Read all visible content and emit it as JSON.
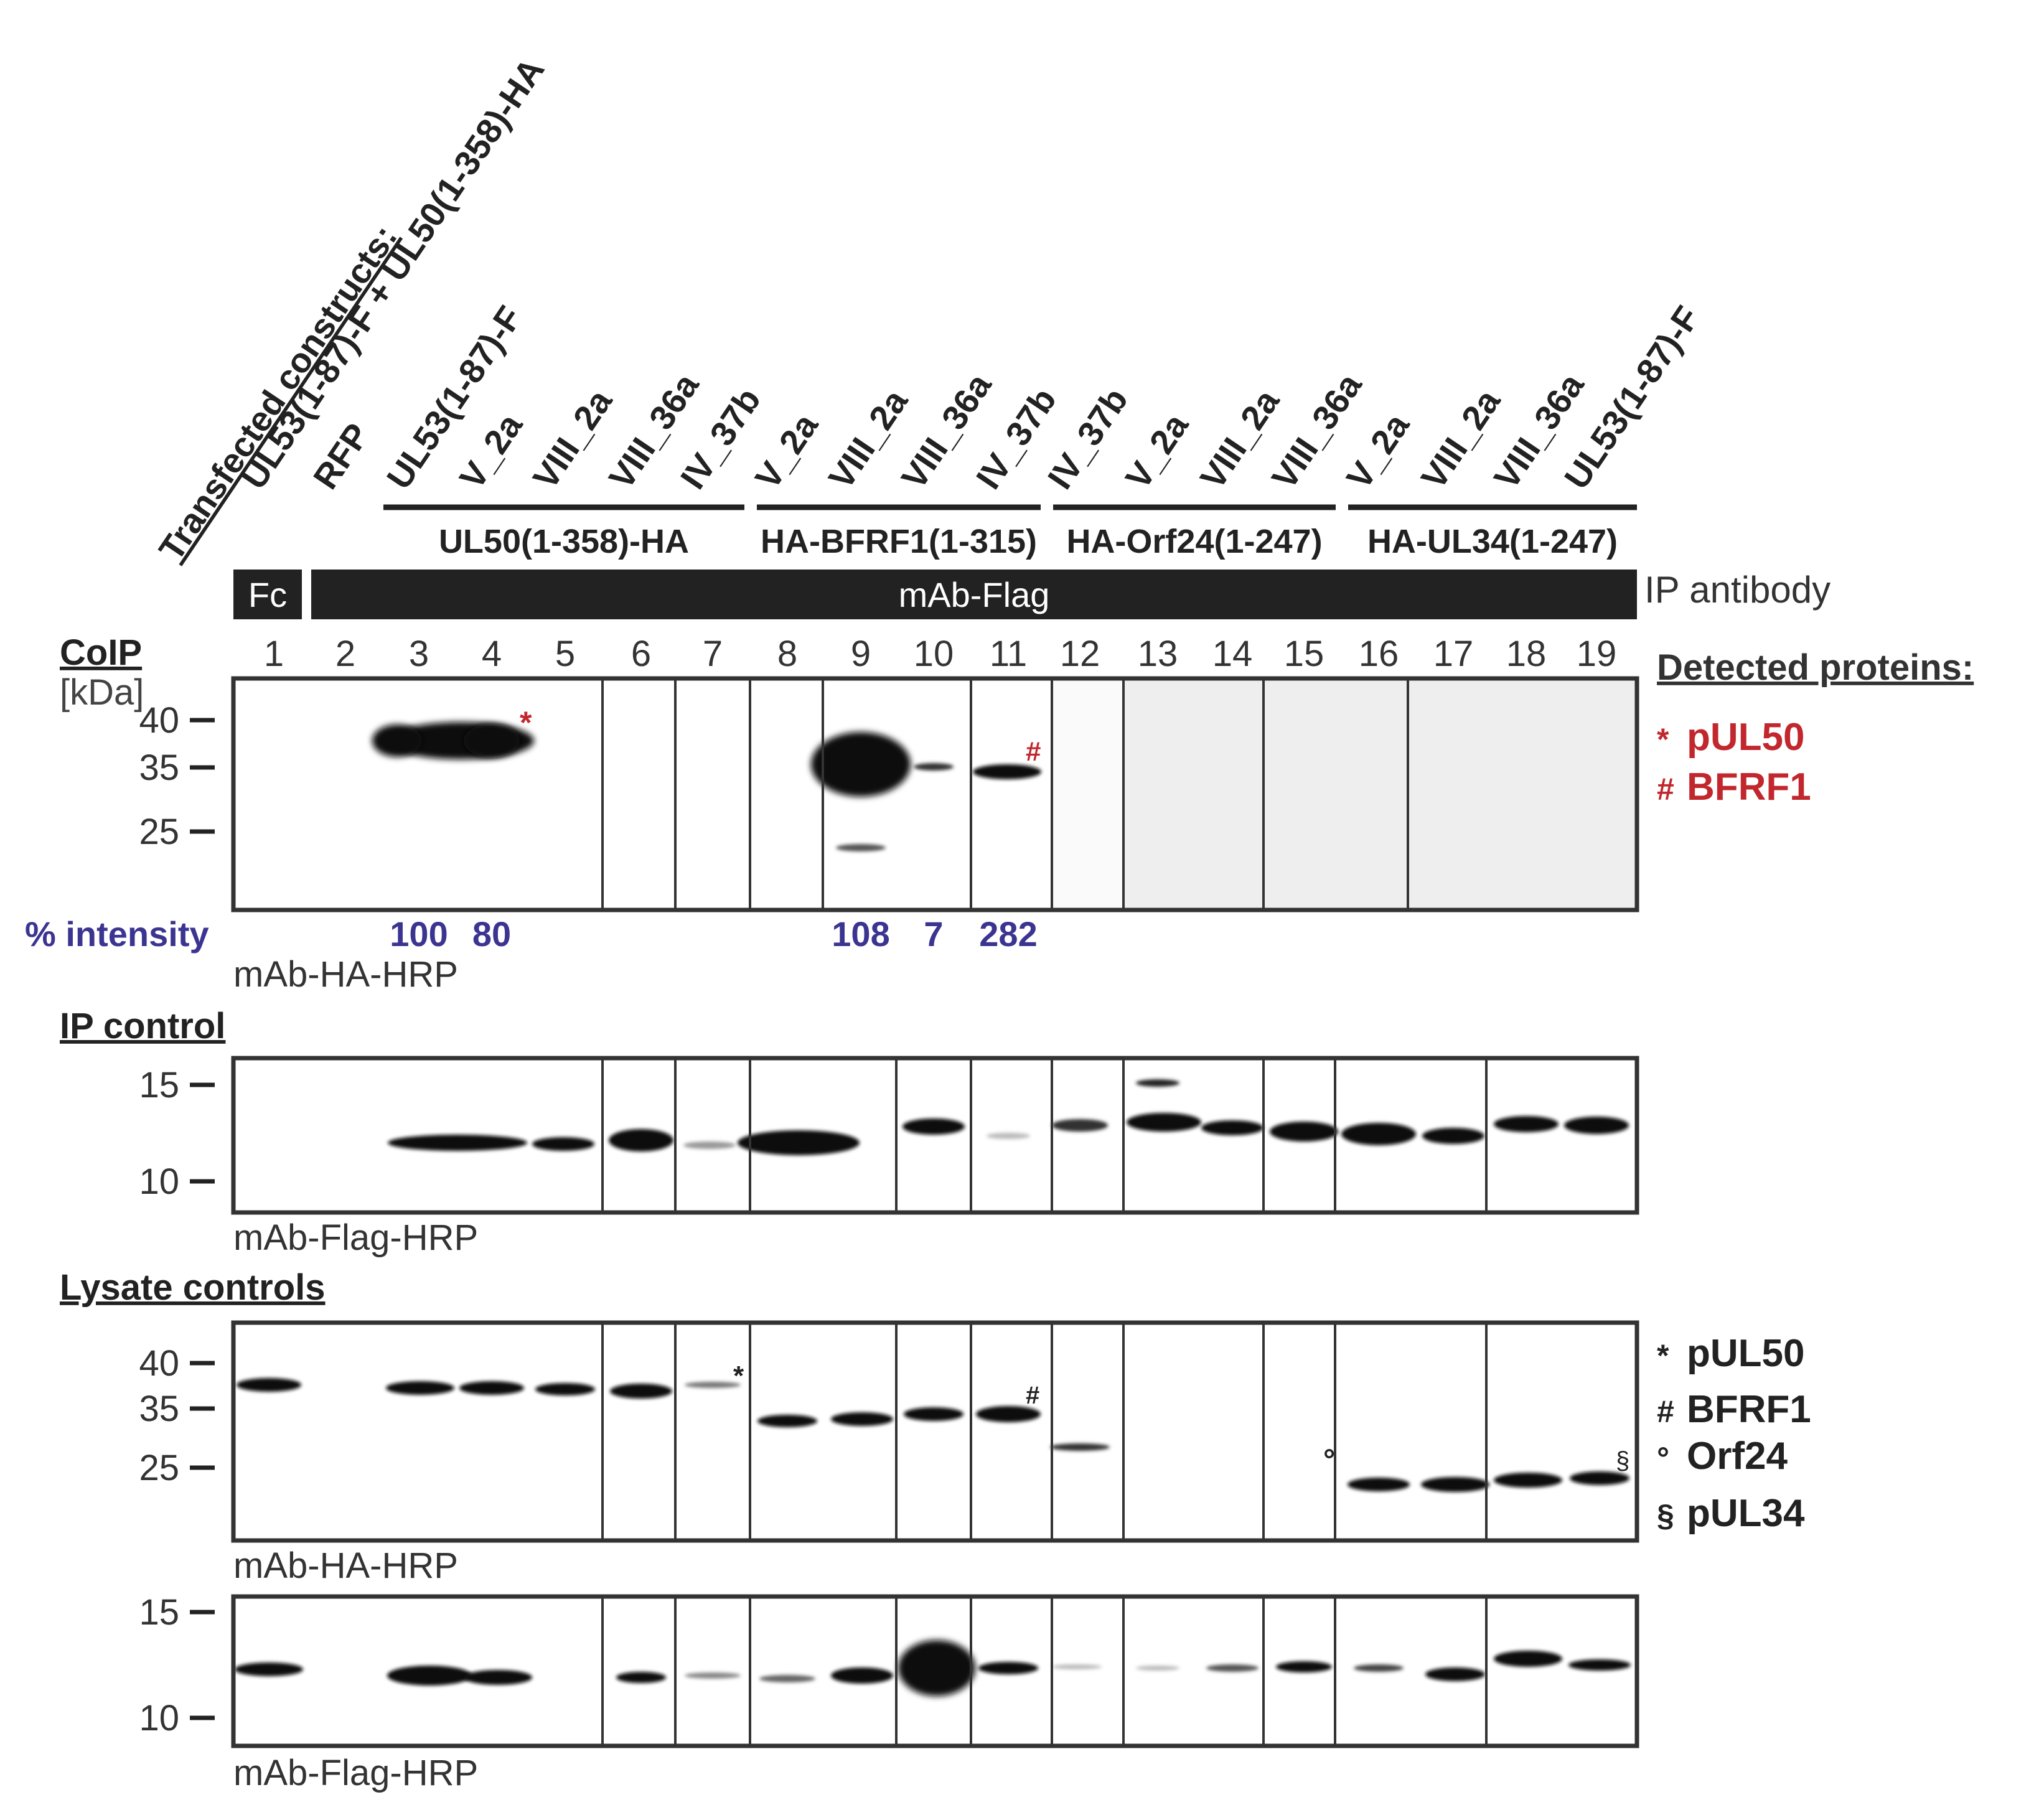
{
  "header": {
    "transfected_label": "Transfected constructs:",
    "lane_labels": [
      "UL53(1-87)-F + UL50(1-358)-HA",
      "RFP",
      "UL53(1-87)-F",
      "V_2a",
      "VIII_2a",
      "VIII_36a",
      "IV_37b",
      "V_2a",
      "VIII_2a",
      "VIII_36a",
      "IV_37b",
      "IV_37b",
      "V_2a",
      "VIII_2a",
      "VIII_36a",
      "V_2a",
      "VIII_2a",
      "VIII_36a",
      "UL53(1-87)-F"
    ],
    "groups": [
      "UL50(1-358)-HA",
      "HA-BFRF1(1-315)",
      "HA-Orf24(1-247)",
      "HA-UL34(1-247)"
    ],
    "ip_fc": "Fc",
    "ip_flag": "mAb-Flag",
    "ip_label": "IP antibody"
  },
  "lane_numbers": [
    "1",
    "2",
    "3",
    "4",
    "5",
    "6",
    "7",
    "8",
    "9",
    "10",
    "11",
    "12",
    "13",
    "14",
    "15",
    "16",
    "17",
    "18",
    "19"
  ],
  "coip": {
    "title": "CoIP",
    "unit": "[kDa]",
    "markers": [
      "40",
      "35",
      "25"
    ],
    "intensity_label": "% intensity",
    "intensities": [
      "100",
      "80",
      "108",
      "7",
      "282"
    ],
    "antibody": "mAb-HA-HRP",
    "symbol_star": "*",
    "symbol_hash": "#"
  },
  "ip_control": {
    "title": "IP control",
    "markers": [
      "15",
      "10"
    ],
    "antibody": "mAb-Flag-HRP"
  },
  "lysate": {
    "title": "Lysate controls",
    "markers_ha": [
      "40",
      "35",
      "25"
    ],
    "antibody_ha": "mAb-HA-HRP",
    "markers_flag": [
      "15",
      "10"
    ],
    "antibody_flag": "mAb-Flag-HRP",
    "symbol_star": "*",
    "symbol_hash": "#",
    "symbol_circle": "°",
    "symbol_section": "§"
  },
  "legend_top": {
    "title": "Detected proteins:",
    "items": [
      {
        "sym": "*",
        "text": "pUL50"
      },
      {
        "sym": "#",
        "text": "BFRF1"
      }
    ]
  },
  "legend_bottom": {
    "items": [
      {
        "sym": "*",
        "text": "pUL50"
      },
      {
        "sym": "#",
        "text": "BFRF1"
      },
      {
        "sym": "°",
        "text": "Orf24"
      },
      {
        "sym": "§",
        "text": "pUL34"
      }
    ]
  },
  "colors": {
    "red": "#c1272d",
    "blue": "#3b3591",
    "dark": "#222222"
  }
}
